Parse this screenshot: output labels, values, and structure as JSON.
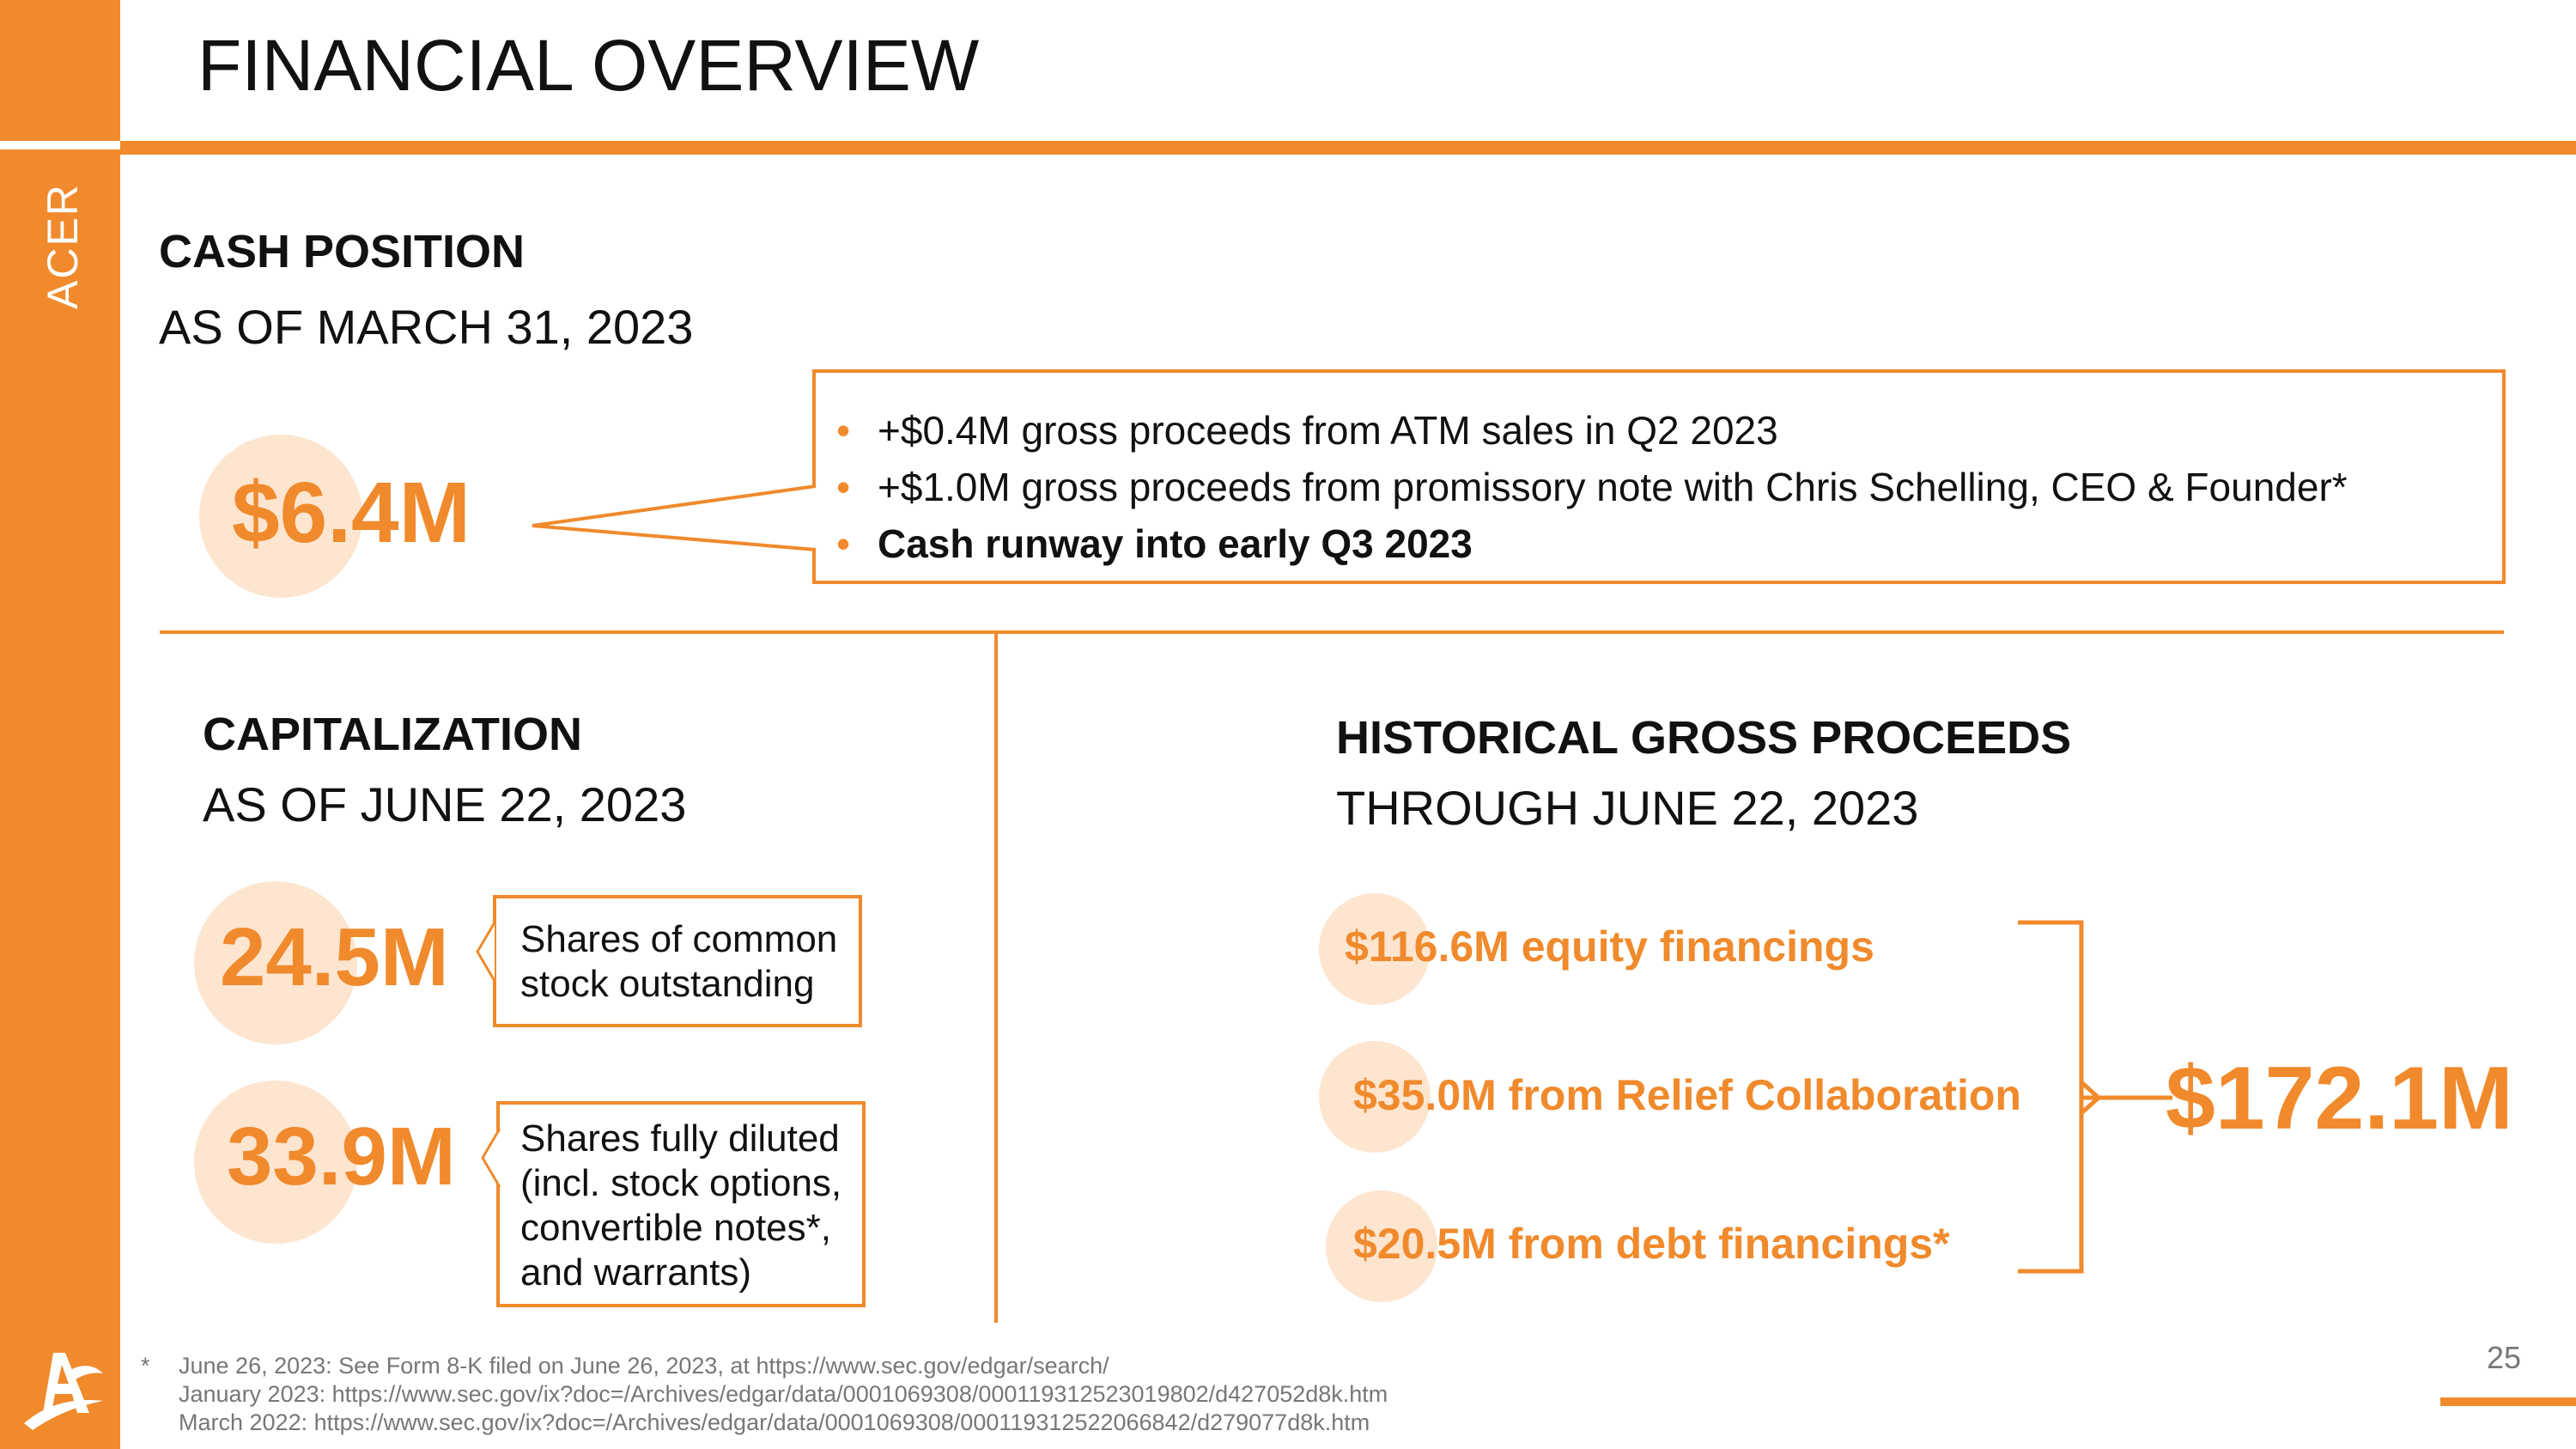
{
  "header": {
    "title": "FINANCIAL OVERVIEW",
    "sidebar_label": "ACER"
  },
  "cash": {
    "heading": "CASH POSITION",
    "subheading": "AS OF MARCH 31, 2023",
    "amount": "$6.4M",
    "bullets": [
      "+$0.4M gross proceeds from ATM sales in Q2 2023",
      "+$1.0M gross proceeds from promissory note with Chris Schelling, CEO & Founder*",
      "Cash runway into early Q3 2023"
    ],
    "bullet_symbol": "•"
  },
  "capitalization": {
    "heading": "CAPITALIZATION",
    "subheading": "AS OF JUNE 22, 2023",
    "items": [
      {
        "value": "24.5M",
        "desc": [
          "Shares of common",
          "stock outstanding"
        ]
      },
      {
        "value": "33.9M",
        "desc": [
          "Shares fully diluted",
          "(incl. stock options,",
          "convertible notes*,",
          "and warrants)"
        ]
      }
    ]
  },
  "proceeds": {
    "heading": "HISTORICAL GROSS PROCEEDS",
    "subheading": "THROUGH JUNE 22, 2023",
    "items": [
      "$116.6M equity financings",
      "$35.0M from Relief Collaboration",
      "$20.5M from debt financings*"
    ],
    "total": "$172.1M"
  },
  "footnote": {
    "marker": "*",
    "lines": [
      "June 26, 2023: See Form 8-K filed on June 26, 2023, at https://www.sec.gov/edgar/search/",
      "January 2023: https://www.sec.gov/ix?doc=/Archives/edgar/data/0001069308/000119312523019802/d427052d8k.htm",
      "March 2022: https://www.sec.gov/ix?doc=/Archives/edgar/data/0001069308/000119312522066842/d279077d8k.htm"
    ]
  },
  "page_number": "25",
  "colors": {
    "accent": "#f08a2c",
    "accent_light": "#fde5d0"
  }
}
